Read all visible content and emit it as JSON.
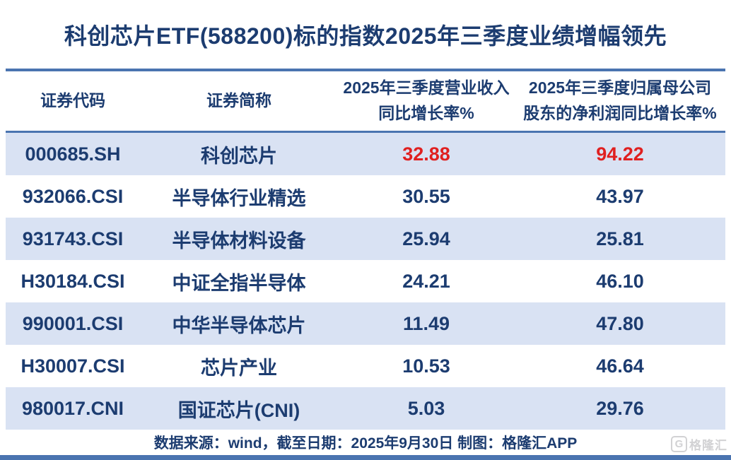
{
  "title": "科创芯片ETF(588200)标的指数2025年三季度业绩增幅领先",
  "table": {
    "headers": [
      {
        "label": "证券代码"
      },
      {
        "label": "证券简称"
      },
      {
        "line1": "2025年三季度营业收入",
        "line2": "同比增长率%"
      },
      {
        "line1": "2025年三季度归属母公司",
        "line2": "股东的净利润同比增长率%"
      }
    ],
    "rows": [
      {
        "code": "000685.SH",
        "name": "科创芯片",
        "revenue_growth": "32.88",
        "profit_growth": "94.22"
      },
      {
        "code": "932066.CSI",
        "name": "半导体行业精选",
        "revenue_growth": "30.55",
        "profit_growth": "43.97"
      },
      {
        "code": "931743.CSI",
        "name": "半导体材料设备",
        "revenue_growth": "25.94",
        "profit_growth": "25.81"
      },
      {
        "code": "H30184.CSI",
        "name": "中证全指半导体",
        "revenue_growth": "24.21",
        "profit_growth": "46.10"
      },
      {
        "code": "990001.CSI",
        "name": "中华半导体芯片",
        "revenue_growth": "11.49",
        "profit_growth": "47.80"
      },
      {
        "code": "H30007.CSI",
        "name": "芯片产业",
        "revenue_growth": "10.53",
        "profit_growth": "46.64"
      },
      {
        "code": "980017.CNI",
        "name": "国证芯片(CNI)",
        "revenue_growth": "5.03",
        "profit_growth": "29.76"
      }
    ]
  },
  "footer": {
    "source_text": "数据来源：wind，截至日期：2025年9月30日 制图：格隆汇APP"
  },
  "watermark": {
    "icon_letter": "G",
    "logo_text": "格隆汇"
  },
  "colors": {
    "navy_text": "#1c3c70",
    "highlight_red": "#e02020",
    "row_alt_blue": "#d9e2f3",
    "divider_blue": "#4a74b0"
  },
  "chart_data": {
    "type": "table",
    "title": "科创芯片ETF(588200)标的指数2025年三季度业绩增幅领先",
    "columns": [
      "证券代码",
      "证券简称",
      "2025年三季度营业收入同比增长率%",
      "2025年三季度归属母公司股东的净利润同比增长率%"
    ],
    "rows": [
      [
        "000685.SH",
        "科创芯片",
        32.88,
        94.22
      ],
      [
        "932066.CSI",
        "半导体行业精选",
        30.55,
        43.97
      ],
      [
        "931743.CSI",
        "半导体材料设备",
        25.94,
        25.81
      ],
      [
        "H30184.CSI",
        "中证全指半导体",
        24.21,
        46.1
      ],
      [
        "990001.CSI",
        "中华半导体芯片",
        11.49,
        47.8
      ],
      [
        "H30007.CSI",
        "芯片产业",
        10.53,
        46.64
      ],
      [
        "980017.CNI",
        "国证芯片(CNI)",
        5.03,
        29.76
      ]
    ],
    "highlight_row": "000685.SH",
    "highlight_color": "#e02020",
    "note": "数据来源：wind，截至日期：2025年9月30日 制图：格隆汇APP"
  }
}
